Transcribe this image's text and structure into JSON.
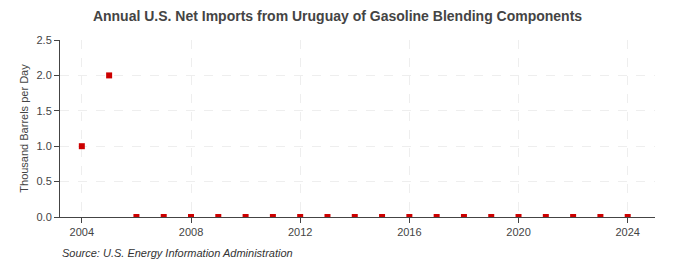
{
  "chart_data": {
    "type": "scatter",
    "title": "Annual U.S. Net Imports from Uruguay of Gasoline Blending Components",
    "ylabel": "Thousand Barrels per Day",
    "annotations": [
      "Source: U.S. Energy Information Administration"
    ],
    "x": [
      2004,
      2005,
      2006,
      2007,
      2008,
      2009,
      2010,
      2011,
      2012,
      2013,
      2014,
      2015,
      2016,
      2017,
      2018,
      2019,
      2020,
      2021,
      2022,
      2023,
      2024
    ],
    "values": [
      1.0,
      2.0,
      0.0,
      0.0,
      0.0,
      0.0,
      0.0,
      0.0,
      0.0,
      0.0,
      0.0,
      0.0,
      0.0,
      0.0,
      0.0,
      0.0,
      0.0,
      0.0,
      0.0,
      0.0,
      0.0
    ],
    "color": "#cc0000",
    "marker": "square",
    "xlim": [
      2003.2,
      2025.0
    ],
    "xticks": [
      2004,
      2008,
      2012,
      2016,
      2020,
      2024
    ],
    "ylim": [
      0,
      2.5
    ],
    "yticks": [
      {
        "value": 0,
        "label": "0.0"
      },
      0.5,
      {
        "value": 1,
        "label": "1.0"
      },
      1.5,
      {
        "value": 2,
        "label": "2.0"
      },
      2.5
    ],
    "grid": true
  }
}
